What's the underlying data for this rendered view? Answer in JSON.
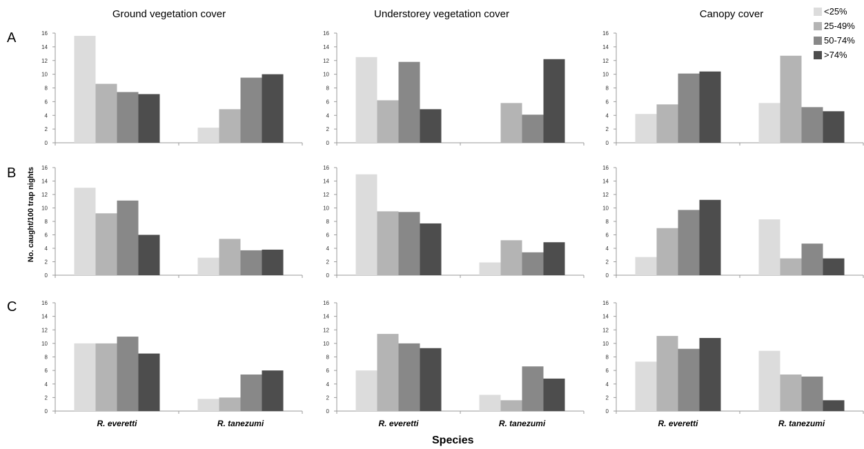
{
  "column_titles": [
    "Ground vegetation cover",
    "Understorey vegetation cover",
    "Canopy cover"
  ],
  "row_labels": [
    "A",
    "B",
    "C"
  ],
  "y_axis_label": "No. caught/100 trap nights",
  "x_axis_label": "Species",
  "legend": [
    {
      "label": "<25%",
      "color": "#dcdcdc"
    },
    {
      "label": "25-49%",
      "color": "#b4b4b4"
    },
    {
      "label": "50-74%",
      "color": "#888888"
    },
    {
      "label": ">74%",
      "color": "#4d4d4d"
    }
  ],
  "chart_data": [
    {
      "type": "bar",
      "row": "A",
      "title": "Ground vegetation cover",
      "ylim": [
        0,
        16
      ],
      "yticks": [
        0,
        2,
        4,
        6,
        8,
        10,
        12,
        14,
        16
      ],
      "categories": [
        "R. everetti",
        "R. tanezumi"
      ],
      "series": [
        {
          "name": "<25%",
          "values": [
            15.6,
            2.2
          ]
        },
        {
          "name": "25-49%",
          "values": [
            8.6,
            4.9
          ]
        },
        {
          "name": "50-74%",
          "values": [
            7.4,
            9.5
          ]
        },
        {
          "name": ">74%",
          "values": [
            7.1,
            10.0
          ]
        }
      ]
    },
    {
      "type": "bar",
      "row": "A",
      "title": "Understorey vegetation cover",
      "ylim": [
        0,
        16
      ],
      "yticks": [
        0,
        2,
        4,
        6,
        8,
        10,
        12,
        14,
        16
      ],
      "categories": [
        "R. everetti",
        "R. tanezumi"
      ],
      "series": [
        {
          "name": "<25%",
          "values": [
            12.5,
            0
          ]
        },
        {
          "name": "25-49%",
          "values": [
            6.2,
            5.8
          ]
        },
        {
          "name": "50-74%",
          "values": [
            11.8,
            4.1
          ]
        },
        {
          "name": ">74%",
          "values": [
            4.9,
            12.2
          ]
        }
      ]
    },
    {
      "type": "bar",
      "row": "A",
      "title": "Canopy cover",
      "ylim": [
        0,
        16
      ],
      "yticks": [
        0,
        2,
        4,
        6,
        8,
        10,
        12,
        14,
        16
      ],
      "categories": [
        "R. everetti",
        "R. tanezumi"
      ],
      "series": [
        {
          "name": "<25%",
          "values": [
            4.2,
            5.8
          ]
        },
        {
          "name": "25-49%",
          "values": [
            5.6,
            12.7
          ]
        },
        {
          "name": "50-74%",
          "values": [
            10.1,
            5.2
          ]
        },
        {
          "name": ">74%",
          "values": [
            10.4,
            4.6
          ]
        }
      ]
    },
    {
      "type": "bar",
      "row": "B",
      "title": "Ground vegetation cover",
      "ylim": [
        0,
        16
      ],
      "yticks": [
        0,
        2,
        4,
        6,
        8,
        10,
        12,
        14,
        16
      ],
      "categories": [
        "R. everetti",
        "R. tanezumi"
      ],
      "series": [
        {
          "name": "<25%",
          "values": [
            13.0,
            2.6
          ]
        },
        {
          "name": "25-49%",
          "values": [
            9.2,
            5.4
          ]
        },
        {
          "name": "50-74%",
          "values": [
            11.1,
            3.7
          ]
        },
        {
          "name": ">74%",
          "values": [
            6.0,
            3.8
          ]
        }
      ]
    },
    {
      "type": "bar",
      "row": "B",
      "title": "Understorey vegetation cover",
      "ylim": [
        0,
        16
      ],
      "yticks": [
        0,
        2,
        4,
        6,
        8,
        10,
        12,
        14,
        16
      ],
      "categories": [
        "R. everetti",
        "R. tanezumi"
      ],
      "series": [
        {
          "name": "<25%",
          "values": [
            15.0,
            1.9
          ]
        },
        {
          "name": "25-49%",
          "values": [
            9.5,
            5.2
          ]
        },
        {
          "name": "50-74%",
          "values": [
            9.4,
            3.4
          ]
        },
        {
          "name": ">74%",
          "values": [
            7.7,
            4.9
          ]
        }
      ]
    },
    {
      "type": "bar",
      "row": "B",
      "title": "Canopy cover",
      "ylim": [
        0,
        16
      ],
      "yticks": [
        0,
        2,
        4,
        6,
        8,
        10,
        12,
        14,
        16
      ],
      "categories": [
        "R. everetti",
        "R. tanezumi"
      ],
      "series": [
        {
          "name": "<25%",
          "values": [
            2.7,
            8.3
          ]
        },
        {
          "name": "25-49%",
          "values": [
            7.0,
            2.5
          ]
        },
        {
          "name": "50-74%",
          "values": [
            9.7,
            4.7
          ]
        },
        {
          "name": ">74%",
          "values": [
            11.2,
            2.5
          ]
        }
      ]
    },
    {
      "type": "bar",
      "row": "C",
      "title": "Ground vegetation cover",
      "ylim": [
        0,
        16
      ],
      "yticks": [
        0,
        2,
        4,
        6,
        8,
        10,
        12,
        14,
        16
      ],
      "categories": [
        "R. everetti",
        "R. tanezumi"
      ],
      "series": [
        {
          "name": "<25%",
          "values": [
            10.0,
            1.8
          ]
        },
        {
          "name": "25-49%",
          "values": [
            10.0,
            2.0
          ]
        },
        {
          "name": "50-74%",
          "values": [
            11.0,
            5.4
          ]
        },
        {
          "name": ">74%",
          "values": [
            8.5,
            6.0
          ]
        }
      ]
    },
    {
      "type": "bar",
      "row": "C",
      "title": "Understorey vegetation cover",
      "ylim": [
        0,
        16
      ],
      "yticks": [
        0,
        2,
        4,
        6,
        8,
        10,
        12,
        14,
        16
      ],
      "categories": [
        "R. everetti",
        "R. tanezumi"
      ],
      "series": [
        {
          "name": "<25%",
          "values": [
            6.0,
            2.4
          ]
        },
        {
          "name": "25-49%",
          "values": [
            11.4,
            1.6
          ]
        },
        {
          "name": "50-74%",
          "values": [
            10.0,
            6.6
          ]
        },
        {
          "name": ">74%",
          "values": [
            9.3,
            4.8
          ]
        }
      ]
    },
    {
      "type": "bar",
      "row": "C",
      "title": "Canopy cover",
      "ylim": [
        0,
        16
      ],
      "yticks": [
        0,
        2,
        4,
        6,
        8,
        10,
        12,
        14,
        16
      ],
      "categories": [
        "R. everetti",
        "R. tanezumi"
      ],
      "series": [
        {
          "name": "<25%",
          "values": [
            7.3,
            8.9
          ]
        },
        {
          "name": "25-49%",
          "values": [
            11.1,
            5.4
          ]
        },
        {
          "name": "50-74%",
          "values": [
            9.2,
            5.1
          ]
        },
        {
          "name": ">74%",
          "values": [
            10.8,
            1.6
          ]
        }
      ]
    }
  ]
}
